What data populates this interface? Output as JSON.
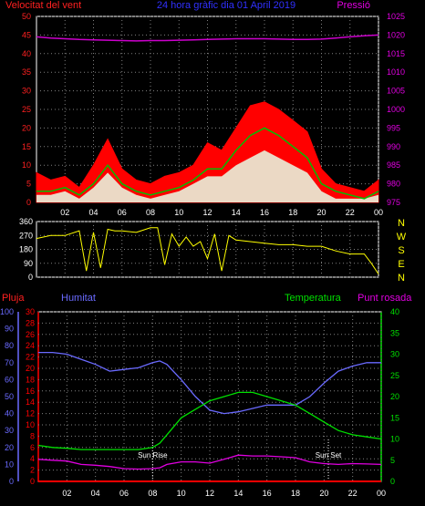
{
  "title": "24 hora gràfic dia 01 April 2019",
  "chart_data": [
    {
      "id": "wind",
      "type": "area",
      "left_axis_label": "Velocitat del vent",
      "right_axis_label": "Pressió",
      "left_ticks": [
        0,
        5,
        10,
        15,
        20,
        25,
        30,
        35,
        40,
        45,
        50
      ],
      "right_ticks": [
        975,
        980,
        985,
        990,
        995,
        1000,
        1005,
        1010,
        1015,
        1020,
        1025
      ],
      "left_ylim": [
        0,
        50
      ],
      "right_ylim": [
        975,
        1025
      ],
      "x_ticks": [
        "02",
        "04",
        "06",
        "08",
        "10",
        "12",
        "14",
        "16",
        "18",
        "20",
        "22",
        "00"
      ],
      "x_hours": [
        2,
        4,
        6,
        8,
        10,
        12,
        14,
        16,
        18,
        20,
        22,
        24
      ],
      "xlim": [
        0,
        24
      ],
      "colors": {
        "gust": "#ff0000",
        "avg": "#00c000",
        "wind": "#e8ffe8",
        "pressure": "#cc00cc"
      },
      "hours": [
        0,
        1,
        2,
        3,
        4,
        5,
        6,
        7,
        8,
        9,
        10,
        11,
        12,
        13,
        14,
        15,
        16,
        17,
        18,
        19,
        20,
        21,
        22,
        23,
        24
      ],
      "gust": [
        8,
        6,
        7,
        4,
        10,
        17,
        9,
        6,
        5,
        7,
        8,
        10,
        16,
        14,
        20,
        26,
        27,
        25,
        22,
        19,
        9,
        5,
        4,
        3,
        6
      ],
      "avg": [
        3,
        3,
        4,
        2,
        5,
        10,
        5,
        3,
        2,
        3,
        4,
        6,
        9,
        9,
        14,
        18,
        20,
        18,
        15,
        12,
        5,
        3,
        2,
        1,
        3
      ],
      "wind": [
        2,
        2,
        3,
        1,
        4,
        8,
        4,
        2,
        1,
        2,
        3,
        5,
        7,
        7,
        10,
        12,
        14,
        12,
        10,
        8,
        3,
        1,
        1,
        1,
        2
      ],
      "pressure": [
        1019.5,
        1019.2,
        1019.0,
        1018.8,
        1018.7,
        1018.6,
        1018.5,
        1018.4,
        1018.5,
        1018.5,
        1018.6,
        1018.7,
        1018.8,
        1018.9,
        1019.0,
        1019.0,
        1019.0,
        1018.9,
        1018.8,
        1018.8,
        1018.9,
        1019.2,
        1019.5,
        1019.8,
        1020.0
      ]
    },
    {
      "id": "direction",
      "type": "line",
      "left_ticks": [
        0,
        90,
        180,
        270,
        360
      ],
      "ylim": [
        0,
        360
      ],
      "right_labels": [
        "N",
        "W",
        "S",
        "E",
        "N"
      ],
      "x_ticks": [
        "02",
        "04",
        "06",
        "08",
        "10",
        "12",
        "14",
        "16",
        "18",
        "20",
        "22",
        "00"
      ],
      "x_hours": [
        2,
        4,
        6,
        8,
        10,
        12,
        14,
        16,
        18,
        20,
        22,
        24
      ],
      "xlim": [
        0,
        24
      ],
      "color": "#ffff00",
      "hours": [
        0,
        1,
        2,
        3,
        3.5,
        4,
        4.5,
        5,
        5.5,
        6,
        7,
        8,
        8.5,
        9,
        9.5,
        10,
        10.5,
        11,
        11.5,
        12,
        12.5,
        13,
        13.5,
        14,
        15,
        16,
        17,
        18,
        19,
        20,
        21,
        22,
        23,
        23.5,
        24
      ],
      "dir": [
        250,
        270,
        270,
        300,
        40,
        290,
        60,
        310,
        300,
        300,
        290,
        320,
        320,
        80,
        280,
        200,
        260,
        200,
        230,
        120,
        280,
        40,
        270,
        240,
        230,
        220,
        210,
        210,
        200,
        200,
        170,
        150,
        150,
        90,
        20
      ]
    },
    {
      "id": "humidity",
      "type": "line",
      "labels": {
        "rain": "Pluja",
        "humidity": "Humitat",
        "temperature": "Temperatura",
        "dewpoint": "Punt rosada"
      },
      "humidity_ticks": [
        0,
        10,
        20,
        30,
        40,
        50,
        60,
        70,
        80,
        90,
        100
      ],
      "rain_ticks": [
        0,
        2,
        4,
        6,
        8,
        10,
        12,
        14,
        16,
        18,
        20,
        22,
        24,
        26,
        28,
        30
      ],
      "temp_ticks": [
        0,
        5,
        10,
        15,
        20,
        25,
        30,
        35,
        40
      ],
      "humidity_ylim": [
        0,
        100
      ],
      "rain_ylim": [
        0,
        30
      ],
      "temp_ylim": [
        0,
        40
      ],
      "x_ticks": [
        "02",
        "04",
        "06",
        "08",
        "10",
        "12",
        "14",
        "16",
        "18",
        "20",
        "22",
        "00"
      ],
      "x_hours": [
        2,
        4,
        6,
        8,
        10,
        12,
        14,
        16,
        18,
        20,
        22,
        24
      ],
      "xlim": [
        0,
        24
      ],
      "colors": {
        "humidity": "#6a6aff",
        "temperature": "#00e000",
        "dewpoint": "#e000e0",
        "rain": "#ff0000",
        "axis_rain": "#ff0000",
        "axis_humidity": "#6a6aff",
        "axis_temp": "#00e000"
      },
      "sun_rise_label": "Sun Rise",
      "sun_set_label": "Sun Set",
      "sun_rise_hour": 8.0,
      "sun_set_hour": 20.3,
      "hours": [
        0,
        1,
        2,
        3,
        4,
        5,
        6,
        7,
        8,
        8.5,
        9,
        10,
        11,
        12,
        13,
        14,
        15,
        16,
        17,
        18,
        19,
        20,
        21,
        22,
        23,
        24
      ],
      "humidity": [
        76,
        76,
        75,
        72,
        69,
        65,
        66,
        67,
        70,
        71,
        69,
        60,
        50,
        42,
        40,
        41,
        43,
        45,
        45,
        45,
        50,
        58,
        65,
        68,
        70,
        70
      ],
      "temperature": [
        8.5,
        8,
        7.8,
        7.5,
        7.5,
        7.5,
        7.5,
        7.5,
        8,
        9,
        11,
        15,
        17,
        19,
        20,
        21,
        21,
        20,
        19,
        18,
        16,
        14,
        12,
        11,
        10.5,
        10
      ],
      "dewpoint": [
        5.2,
        5.0,
        4.8,
        4.0,
        3.8,
        3.5,
        3.0,
        2.9,
        3.0,
        3.2,
        4.0,
        4.6,
        4.6,
        4.3,
        5.2,
        6.2,
        6.0,
        6.0,
        5.8,
        5.6,
        4.6,
        4.2,
        4.0,
        4.2,
        4.1,
        4.0
      ],
      "rain": [
        0,
        0,
        0,
        0,
        0,
        0,
        0,
        0,
        0,
        0,
        0,
        0,
        0,
        0,
        0,
        0,
        0,
        0,
        0,
        0,
        0,
        0,
        0,
        0,
        0,
        0
      ]
    }
  ]
}
